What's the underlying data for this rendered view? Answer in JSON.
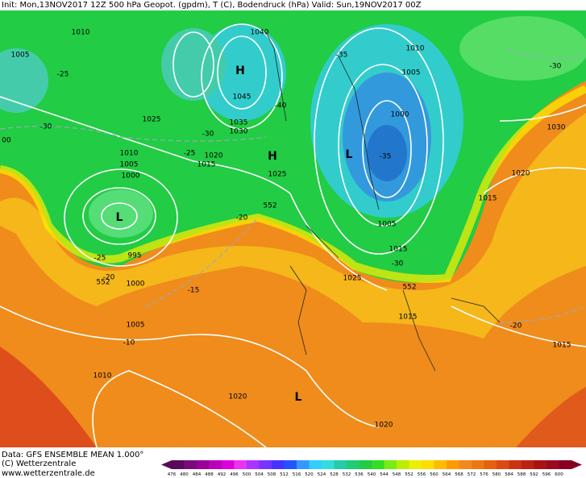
{
  "header": {
    "title": "Init: Mon,13NOV2017 12Z 500 hPa Geopot. (gpdm), T (C), Bodendruck (hPa) Valid: Sun,19NOV2017 00Z"
  },
  "map": {
    "labels": [
      "1010",
      "1005",
      "-25",
      "-30",
      "00",
      "1025",
      "1010",
      "1005",
      "1000",
      "L",
      "-25",
      "995",
      "-20",
      "552",
      "1000",
      "-15",
      "1005",
      "-10",
      "1010",
      "1020",
      "L",
      "1020",
      "1040",
      "H",
      "1045",
      "1035",
      "1030",
      "-30",
      "-25",
      "1020",
      "1015",
      "H",
      "1025",
      "-20",
      "552",
      "-40",
      "-35",
      "1010",
      "1005",
      "1000",
      "L",
      "-35",
      "1005",
      "1015",
      "-30",
      "1025",
      "552",
      "1015",
      "-30",
      "1030",
      "1020",
      "1015",
      "-20",
      "1015"
    ]
  },
  "footer": {
    "lines": [
      "Data: GFS ENSEMBLE MEAN 1.000°",
      "(C) Wetterzentrale",
      "www.wetterzentrale.de"
    ]
  },
  "colorbar": {
    "labels": [
      "476",
      "480",
      "484",
      "488",
      "492",
      "496",
      "500",
      "504",
      "508",
      "512",
      "516",
      "520",
      "524",
      "528",
      "532",
      "536",
      "540",
      "544",
      "548",
      "552",
      "556",
      "560",
      "564",
      "568",
      "572",
      "576",
      "580",
      "584",
      "588",
      "592",
      "596",
      "600"
    ]
  }
}
